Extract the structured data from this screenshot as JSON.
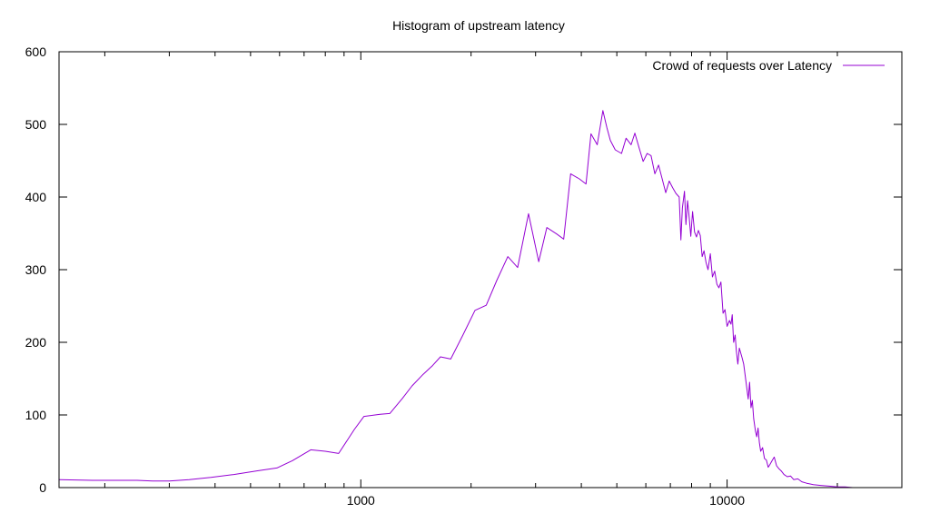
{
  "chart_data": {
    "type": "line",
    "title": "Histogram of upstream latency",
    "xlabel": "",
    "ylabel": "",
    "x_scale": "log",
    "xlim": [
      150,
      30000
    ],
    "ylim": [
      0,
      600
    ],
    "x_ticks": [
      1000,
      10000
    ],
    "x_tick_labels": [
      "1000",
      "10000"
    ],
    "x_minor_ticks": [
      200,
      300,
      400,
      500,
      600,
      700,
      800,
      900,
      2000,
      3000,
      4000,
      5000,
      6000,
      7000,
      8000,
      9000,
      20000,
      30000
    ],
    "y_ticks": [
      0,
      100,
      200,
      300,
      400,
      500,
      600
    ],
    "y_tick_labels": [
      "0",
      "100",
      "200",
      "300",
      "400",
      "500",
      "600"
    ],
    "grid": false,
    "legend_position": "top-right",
    "series": [
      {
        "name": "Crowd of requests over Latency",
        "color": "#9400d3",
        "points": [
          [
            150,
            11
          ],
          [
            185,
            10
          ],
          [
            220,
            10
          ],
          [
            245,
            10
          ],
          [
            270,
            9
          ],
          [
            300,
            9
          ],
          [
            340,
            11
          ],
          [
            390,
            14
          ],
          [
            450,
            18
          ],
          [
            520,
            23
          ],
          [
            590,
            27
          ],
          [
            650,
            37
          ],
          [
            730,
            52
          ],
          [
            800,
            50
          ],
          [
            870,
            47
          ],
          [
            960,
            80
          ],
          [
            1020,
            98
          ],
          [
            1130,
            101
          ],
          [
            1200,
            102
          ],
          [
            1300,
            123
          ],
          [
            1380,
            140
          ],
          [
            1480,
            156
          ],
          [
            1570,
            168
          ],
          [
            1650,
            180
          ],
          [
            1760,
            177
          ],
          [
            1900,
            210
          ],
          [
            2050,
            244
          ],
          [
            2200,
            251
          ],
          [
            2350,
            285
          ],
          [
            2520,
            318
          ],
          [
            2680,
            303
          ],
          [
            2870,
            377
          ],
          [
            3060,
            311
          ],
          [
            3220,
            358
          ],
          [
            3430,
            349
          ],
          [
            3580,
            342
          ],
          [
            3740,
            432
          ],
          [
            3950,
            425
          ],
          [
            4120,
            418
          ],
          [
            4250,
            487
          ],
          [
            4420,
            472
          ],
          [
            4580,
            519
          ],
          [
            4700,
            495
          ],
          [
            4800,
            478
          ],
          [
            4950,
            465
          ],
          [
            5150,
            460
          ],
          [
            5300,
            481
          ],
          [
            5470,
            472
          ],
          [
            5600,
            488
          ],
          [
            5750,
            468
          ],
          [
            5900,
            449
          ],
          [
            6050,
            460
          ],
          [
            6200,
            457
          ],
          [
            6350,
            432
          ],
          [
            6500,
            444
          ],
          [
            6650,
            425
          ],
          [
            6800,
            406
          ],
          [
            6950,
            422
          ],
          [
            7100,
            413
          ],
          [
            7250,
            405
          ],
          [
            7400,
            400
          ],
          [
            7480,
            341
          ],
          [
            7550,
            385
          ],
          [
            7650,
            408
          ],
          [
            7720,
            362
          ],
          [
            7800,
            395
          ],
          [
            7880,
            372
          ],
          [
            7960,
            346
          ],
          [
            8050,
            380
          ],
          [
            8150,
            352
          ],
          [
            8250,
            345
          ],
          [
            8350,
            354
          ],
          [
            8450,
            347
          ],
          [
            8550,
            318
          ],
          [
            8650,
            326
          ],
          [
            8760,
            310
          ],
          [
            8870,
            300
          ],
          [
            9000,
            322
          ],
          [
            9120,
            290
          ],
          [
            9250,
            298
          ],
          [
            9380,
            280
          ],
          [
            9500,
            275
          ],
          [
            9620,
            283
          ],
          [
            9750,
            240
          ],
          [
            9870,
            245
          ],
          [
            10000,
            222
          ],
          [
            10150,
            230
          ],
          [
            10250,
            225
          ],
          [
            10330,
            238
          ],
          [
            10420,
            200
          ],
          [
            10520,
            210
          ],
          [
            10600,
            188
          ],
          [
            10700,
            170
          ],
          [
            10800,
            192
          ],
          [
            10900,
            185
          ],
          [
            11000,
            178
          ],
          [
            11100,
            170
          ],
          [
            11200,
            155
          ],
          [
            11300,
            140
          ],
          [
            11420,
            122
          ],
          [
            11520,
            145
          ],
          [
            11620,
            110
          ],
          [
            11720,
            120
          ],
          [
            11820,
            95
          ],
          [
            11950,
            78
          ],
          [
            12050,
            70
          ],
          [
            12150,
            82
          ],
          [
            12250,
            62
          ],
          [
            12350,
            50
          ],
          [
            12500,
            55
          ],
          [
            12650,
            40
          ],
          [
            12800,
            38
          ],
          [
            12950,
            28
          ],
          [
            13100,
            32
          ],
          [
            13300,
            38
          ],
          [
            13450,
            42
          ],
          [
            13650,
            30
          ],
          [
            13850,
            26
          ],
          [
            14050,
            23
          ],
          [
            14300,
            18
          ],
          [
            14600,
            15
          ],
          [
            14900,
            16
          ],
          [
            15200,
            11
          ],
          [
            15600,
            12
          ],
          [
            16000,
            8
          ],
          [
            16500,
            6
          ],
          [
            17200,
            4
          ],
          [
            18000,
            3
          ],
          [
            19000,
            2
          ],
          [
            20000,
            1
          ],
          [
            21000,
            1
          ],
          [
            22000,
            0
          ]
        ]
      }
    ]
  }
}
